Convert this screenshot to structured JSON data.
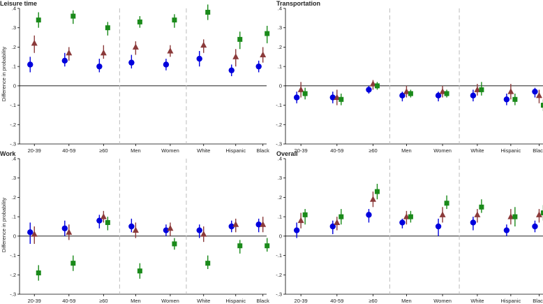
{
  "colors": {
    "series1": "#0000dd",
    "series2": "#8b3a3a",
    "series3": "#1a8a1a",
    "separator": "#bdbdbd"
  },
  "chart_data": [
    {
      "type": "scatter",
      "title": "Leisure time",
      "ylabel": "Difference in probability",
      "ylim": [
        -0.3,
        0.4
      ],
      "yticks": [
        ".4",
        ".3",
        ".2",
        ".1",
        "0",
        "-.1",
        "-.2",
        "-.3"
      ],
      "categories": [
        "20-39",
        "40-59",
        "≥60",
        "Men",
        "Women",
        "White",
        "Hispanic",
        "Black"
      ],
      "series": [
        {
          "marker": "circle",
          "values": [
            0.11,
            0.13,
            0.1,
            0.12,
            0.11,
            0.14,
            0.08,
            0.1
          ],
          "lo": [
            0.07,
            0.1,
            0.07,
            0.09,
            0.08,
            0.1,
            0.05,
            0.07
          ],
          "hi": [
            0.15,
            0.17,
            0.14,
            0.16,
            0.14,
            0.18,
            0.11,
            0.13
          ]
        },
        {
          "marker": "triangle",
          "values": [
            0.22,
            0.17,
            0.17,
            0.2,
            0.18,
            0.21,
            0.15,
            0.16
          ],
          "lo": [
            0.17,
            0.13,
            0.14,
            0.16,
            0.15,
            0.17,
            0.1,
            0.12
          ],
          "hi": [
            0.26,
            0.2,
            0.21,
            0.23,
            0.21,
            0.24,
            0.19,
            0.2
          ]
        },
        {
          "marker": "square",
          "values": [
            0.34,
            0.36,
            0.3,
            0.33,
            0.34,
            0.38,
            0.24,
            0.27
          ],
          "lo": [
            0.3,
            0.32,
            0.26,
            0.3,
            0.3,
            0.34,
            0.19,
            0.22
          ],
          "hi": [
            0.38,
            0.39,
            0.33,
            0.36,
            0.37,
            0.42,
            0.28,
            0.31
          ]
        }
      ]
    },
    {
      "type": "scatter",
      "title": "Transportation",
      "ylabel": "",
      "ylim": [
        -0.3,
        0.4
      ],
      "yticks": [
        ".4",
        ".3",
        ".2",
        ".1",
        "0",
        "-.1",
        "-.2",
        "-.3"
      ],
      "categories": [
        "20-39",
        "40-59",
        "≥60",
        "Men",
        "Women",
        "White",
        "Hispanic",
        "Black"
      ],
      "series": [
        {
          "marker": "circle",
          "values": [
            -0.06,
            -0.06,
            -0.02,
            -0.05,
            -0.05,
            -0.05,
            -0.07,
            -0.03
          ],
          "lo": [
            -0.09,
            -0.09,
            -0.04,
            -0.08,
            -0.08,
            -0.08,
            -0.1,
            -0.06
          ],
          "hi": [
            -0.03,
            -0.03,
            0.0,
            -0.03,
            -0.03,
            -0.02,
            -0.04,
            -0.01
          ]
        },
        {
          "marker": "triangle",
          "values": [
            -0.02,
            -0.06,
            0.01,
            -0.03,
            -0.03,
            -0.02,
            -0.03,
            -0.05
          ],
          "lo": [
            -0.06,
            -0.1,
            -0.02,
            -0.06,
            -0.06,
            -0.05,
            -0.07,
            -0.09
          ],
          "hi": [
            0.02,
            -0.02,
            0.03,
            0.0,
            0.0,
            0.01,
            0.01,
            -0.02
          ]
        },
        {
          "marker": "square",
          "values": [
            -0.04,
            -0.07,
            0.0,
            -0.04,
            -0.04,
            -0.02,
            -0.07,
            -0.1
          ],
          "lo": [
            -0.07,
            -0.1,
            -0.02,
            -0.06,
            -0.06,
            -0.05,
            -0.1,
            -0.13
          ],
          "hi": [
            -0.01,
            -0.04,
            0.02,
            -0.02,
            -0.02,
            0.02,
            -0.04,
            -0.07
          ]
        }
      ]
    },
    {
      "type": "scatter",
      "title": "Work",
      "ylabel": "Difference in probability",
      "ylim": [
        -0.3,
        0.4
      ],
      "yticks": [
        ".4",
        ".3",
        ".2",
        ".1",
        "0",
        "-.1",
        "-.2",
        "-.3"
      ],
      "categories": [
        "20-39",
        "40-59",
        "≥60",
        "Men",
        "Women",
        "White",
        "Hispanic",
        "Black"
      ],
      "series": [
        {
          "marker": "circle",
          "values": [
            0.02,
            0.04,
            0.08,
            0.05,
            0.03,
            0.03,
            0.05,
            0.06
          ],
          "lo": [
            -0.04,
            0.0,
            0.04,
            0.02,
            0.0,
            -0.01,
            0.02,
            0.02
          ],
          "hi": [
            0.07,
            0.08,
            0.11,
            0.09,
            0.06,
            0.06,
            0.08,
            0.09
          ]
        },
        {
          "marker": "triangle",
          "values": [
            0.01,
            0.02,
            0.1,
            0.03,
            0.04,
            0.01,
            0.06,
            0.06
          ],
          "lo": [
            -0.04,
            -0.02,
            0.07,
            -0.01,
            0.0,
            -0.03,
            0.02,
            0.02
          ],
          "hi": [
            0.05,
            0.06,
            0.13,
            0.07,
            0.07,
            0.05,
            0.09,
            0.1
          ]
        },
        {
          "marker": "square",
          "values": [
            -0.19,
            -0.14,
            0.07,
            -0.18,
            -0.04,
            -0.14,
            -0.05,
            -0.05
          ],
          "lo": [
            -0.23,
            -0.18,
            0.03,
            -0.22,
            -0.07,
            -0.17,
            -0.09,
            -0.08
          ],
          "hi": [
            -0.15,
            -0.1,
            0.1,
            -0.14,
            -0.01,
            -0.1,
            -0.02,
            -0.01
          ]
        }
      ]
    },
    {
      "type": "scatter",
      "title": "Overall",
      "ylabel": "",
      "ylim": [
        -0.3,
        0.4
      ],
      "yticks": [
        ".4",
        ".3",
        ".2",
        ".1",
        "0",
        "-.1",
        "-.2",
        "-.3"
      ],
      "categories": [
        "20-39",
        "40-59",
        "≥60",
        "Men",
        "Women",
        "White",
        "Hispanic",
        "Black"
      ],
      "series": [
        {
          "marker": "circle",
          "values": [
            0.03,
            0.05,
            0.11,
            0.07,
            0.05,
            0.07,
            0.03,
            0.05
          ],
          "lo": [
            -0.01,
            0.01,
            0.07,
            0.04,
            0.0,
            0.03,
            0.0,
            0.02
          ],
          "hi": [
            0.07,
            0.08,
            0.14,
            0.09,
            0.09,
            0.1,
            0.06,
            0.08
          ]
        },
        {
          "marker": "triangle",
          "values": [
            0.08,
            0.07,
            0.19,
            0.1,
            0.11,
            0.11,
            0.1,
            0.11
          ],
          "lo": [
            0.04,
            0.03,
            0.15,
            0.06,
            0.07,
            0.07,
            0.06,
            0.07
          ],
          "hi": [
            0.12,
            0.1,
            0.23,
            0.13,
            0.15,
            0.14,
            0.14,
            0.14
          ]
        },
        {
          "marker": "square",
          "values": [
            0.11,
            0.1,
            0.23,
            0.1,
            0.17,
            0.15,
            0.1,
            0.12
          ],
          "lo": [
            0.06,
            0.06,
            0.19,
            0.07,
            0.14,
            0.12,
            0.05,
            0.08
          ],
          "hi": [
            0.14,
            0.14,
            0.27,
            0.13,
            0.21,
            0.19,
            0.15,
            0.16
          ]
        }
      ]
    }
  ]
}
